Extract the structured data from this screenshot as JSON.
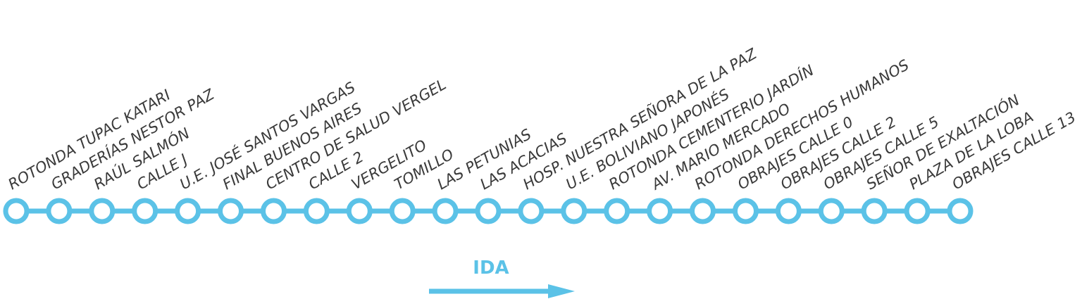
{
  "route": {
    "color": "#5bc2e7",
    "label_color": "#3a3a3a",
    "stops": [
      "ROTONDA TUPAC KATARI",
      "GRADERÍAS NESTOR PAZ",
      "RAÚL SALMÓN",
      "CALLE J",
      "U.E. JOSÉ SANTOS VARGAS",
      "FINAL BUENOS AIRES",
      "CENTRO DE SALUD VERGEL",
      "CALLE 2",
      "VERGELITO",
      "TOMILLO",
      "LAS PETUNIAS",
      "LAS ACACIAS",
      "HOSP. NUESTRA SEÑORA DE LA PAZ",
      "U.E. BOLIVIANO JAPONÉS",
      "ROTONDA CEMENTERIO JARDÍN",
      "AV. MARIO MERCADO",
      "ROTONDA DERECHOS HUMANOS",
      "OBRAJES CALLE 0",
      "OBRAJES CALLE 2",
      "OBRAJES CALLE 5",
      "SEÑOR DE EXALTACIÓN",
      "PLAZA DE LA LOBA",
      "OBRAJES CALLE 13"
    ]
  },
  "direction": {
    "label": "IDA",
    "arrow": "right-arrow"
  }
}
